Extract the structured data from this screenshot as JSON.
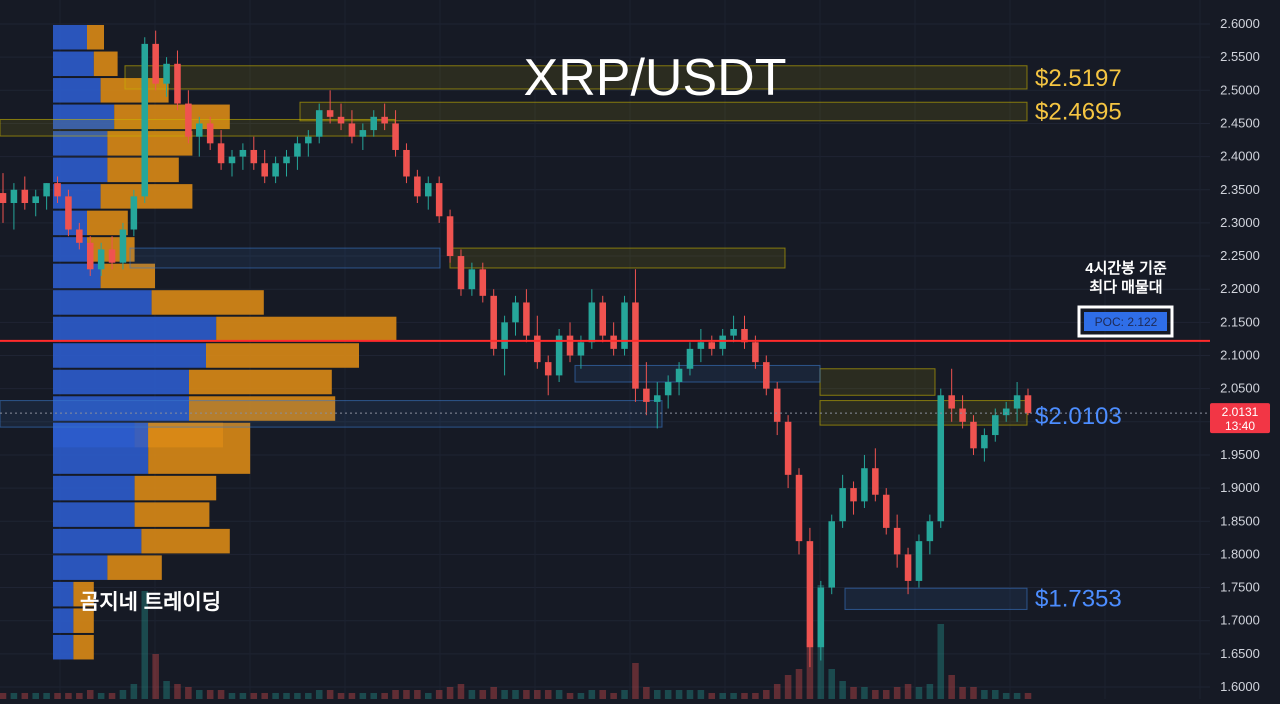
{
  "chart_data": {
    "type": "candlestick",
    "title": "XRP/USDT",
    "y_axis": {
      "position": "right",
      "ylim": [
        1.59,
        2.61
      ],
      "ticks": [
        "2.6000",
        "2.5500",
        "2.5000",
        "2.4500",
        "2.4000",
        "2.3500",
        "2.3000",
        "2.2500",
        "2.2000",
        "2.1500",
        "2.1000",
        "2.0500",
        "2.0000",
        "1.9500",
        "1.9000",
        "1.8500",
        "1.8000",
        "1.7500",
        "1.7000",
        "1.6500",
        "1.6000"
      ]
    },
    "last_price": {
      "value": "2.0131",
      "countdown": "13:40",
      "color": "#f23645"
    },
    "price_levels": [
      {
        "label": "$2.5197",
        "value": 2.5197,
        "color": "#f5c542"
      },
      {
        "label": "$2.4695",
        "value": 2.4695,
        "color": "#f5c542"
      },
      {
        "label": "$2.0103",
        "value": 2.0103,
        "color": "#4c8dff"
      },
      {
        "label": "$1.7353",
        "value": 1.7353,
        "color": "#4c8dff"
      }
    ],
    "poc": {
      "label": "POC: 2.122",
      "value": 2.122,
      "note_line1": "4시간봉 기준",
      "note_line2": "최다 매물대",
      "line_color": "#ff2b2b"
    },
    "zones": [
      {
        "from": 2.502,
        "to": 2.537,
        "color": "#c9b400"
      },
      {
        "from": 2.454,
        "to": 2.482,
        "color": "#c9b400"
      },
      {
        "from": 2.431,
        "to": 2.456,
        "color": "#c9b400"
      },
      {
        "from": 2.232,
        "to": 2.262,
        "color": "#c9b400"
      },
      {
        "from": 2.04,
        "to": 2.08,
        "color": "#c9b400"
      },
      {
        "from": 1.995,
        "to": 2.032,
        "color": "#c9b400"
      },
      {
        "from": 1.717,
        "to": 1.749,
        "color": "#3a78c9"
      },
      {
        "from": 1.992,
        "to": 2.032,
        "color": "#3a78c9"
      },
      {
        "from": 2.06,
        "to": 2.085,
        "color": "#3a78c9"
      },
      {
        "from": 2.232,
        "to": 2.262,
        "color": "#3a78c9"
      }
    ],
    "volume_profile": {
      "rows": [
        {
          "low": 2.56,
          "high": 2.6,
          "buy": 0.1,
          "sell": 0.05
        },
        {
          "low": 2.52,
          "high": 2.56,
          "buy": 0.12,
          "sell": 0.07
        },
        {
          "low": 2.48,
          "high": 2.52,
          "buy": 0.14,
          "sell": 0.2
        },
        {
          "low": 2.44,
          "high": 2.48,
          "buy": 0.18,
          "sell": 0.34
        },
        {
          "low": 2.4,
          "high": 2.44,
          "buy": 0.16,
          "sell": 0.25
        },
        {
          "low": 2.36,
          "high": 2.4,
          "buy": 0.16,
          "sell": 0.21
        },
        {
          "low": 2.32,
          "high": 2.36,
          "buy": 0.14,
          "sell": 0.27
        },
        {
          "low": 2.28,
          "high": 2.32,
          "buy": 0.1,
          "sell": 0.12
        },
        {
          "low": 2.24,
          "high": 2.28,
          "buy": 0.1,
          "sell": 0.14
        },
        {
          "low": 2.2,
          "high": 2.24,
          "buy": 0.14,
          "sell": 0.16
        },
        {
          "low": 2.16,
          "high": 2.2,
          "buy": 0.29,
          "sell": 0.33
        },
        {
          "low": 2.12,
          "high": 2.16,
          "buy": 0.48,
          "sell": 0.53
        },
        {
          "low": 2.08,
          "high": 2.12,
          "buy": 0.45,
          "sell": 0.45
        },
        {
          "low": 2.04,
          "high": 2.08,
          "buy": 0.4,
          "sell": 0.42
        },
        {
          "low": 2.0,
          "high": 2.04,
          "buy": 0.4,
          "sell": 0.43
        },
        {
          "low": 1.96,
          "high": 2.0,
          "buy": 0.24,
          "sell": 0.26
        },
        {
          "low": 1.92,
          "high": 2.0,
          "buy": 0.28,
          "sell": 0.3
        },
        {
          "low": 1.88,
          "high": 1.92,
          "buy": 0.24,
          "sell": 0.24
        },
        {
          "low": 1.84,
          "high": 1.88,
          "buy": 0.24,
          "sell": 0.22
        },
        {
          "low": 1.8,
          "high": 1.84,
          "buy": 0.26,
          "sell": 0.26
        },
        {
          "low": 1.76,
          "high": 1.8,
          "buy": 0.16,
          "sell": 0.16
        },
        {
          "low": 1.72,
          "high": 1.76,
          "buy": 0.06,
          "sell": 0.06
        },
        {
          "low": 1.68,
          "high": 1.72,
          "buy": 0.06,
          "sell": 0.06
        },
        {
          "low": 1.64,
          "high": 1.68,
          "buy": 0.06,
          "sell": 0.06
        }
      ]
    },
    "candles": [
      [
        2.345,
        2.375,
        2.3,
        2.33
      ],
      [
        2.33,
        2.36,
        2.29,
        2.35
      ],
      [
        2.35,
        2.37,
        2.32,
        2.33
      ],
      [
        2.33,
        2.35,
        2.31,
        2.34
      ],
      [
        2.34,
        2.36,
        2.32,
        2.36
      ],
      [
        2.36,
        2.37,
        2.33,
        2.34
      ],
      [
        2.34,
        2.35,
        2.28,
        2.29
      ],
      [
        2.29,
        2.3,
        2.26,
        2.27
      ],
      [
        2.27,
        2.28,
        2.22,
        2.23
      ],
      [
        2.23,
        2.27,
        2.22,
        2.26
      ],
      [
        2.26,
        2.28,
        2.23,
        2.24
      ],
      [
        2.24,
        2.3,
        2.23,
        2.29
      ],
      [
        2.29,
        2.35,
        2.28,
        2.34
      ],
      [
        2.34,
        2.58,
        2.33,
        2.57
      ],
      [
        2.57,
        2.59,
        2.5,
        2.51
      ],
      [
        2.51,
        2.55,
        2.49,
        2.54
      ],
      [
        2.54,
        2.56,
        2.47,
        2.48
      ],
      [
        2.48,
        2.5,
        2.42,
        2.43
      ],
      [
        2.43,
        2.46,
        2.4,
        2.45
      ],
      [
        2.45,
        2.46,
        2.41,
        2.42
      ],
      [
        2.42,
        2.44,
        2.38,
        2.39
      ],
      [
        2.39,
        2.41,
        2.37,
        2.4
      ],
      [
        2.4,
        2.42,
        2.38,
        2.41
      ],
      [
        2.41,
        2.43,
        2.38,
        2.39
      ],
      [
        2.39,
        2.41,
        2.36,
        2.37
      ],
      [
        2.37,
        2.4,
        2.36,
        2.39
      ],
      [
        2.39,
        2.41,
        2.37,
        2.4
      ],
      [
        2.4,
        2.43,
        2.38,
        2.42
      ],
      [
        2.42,
        2.44,
        2.4,
        2.43
      ],
      [
        2.43,
        2.48,
        2.42,
        2.47
      ],
      [
        2.47,
        2.5,
        2.45,
        2.46
      ],
      [
        2.46,
        2.48,
        2.44,
        2.45
      ],
      [
        2.45,
        2.47,
        2.42,
        2.43
      ],
      [
        2.43,
        2.45,
        2.41,
        2.44
      ],
      [
        2.44,
        2.47,
        2.43,
        2.46
      ],
      [
        2.46,
        2.48,
        2.44,
        2.45
      ],
      [
        2.45,
        2.47,
        2.4,
        2.41
      ],
      [
        2.41,
        2.42,
        2.36,
        2.37
      ],
      [
        2.37,
        2.38,
        2.33,
        2.34
      ],
      [
        2.34,
        2.37,
        2.32,
        2.36
      ],
      [
        2.36,
        2.37,
        2.3,
        2.31
      ],
      [
        2.31,
        2.32,
        2.24,
        2.25
      ],
      [
        2.25,
        2.26,
        2.19,
        2.2
      ],
      [
        2.2,
        2.24,
        2.19,
        2.23
      ],
      [
        2.23,
        2.24,
        2.18,
        2.19
      ],
      [
        2.19,
        2.2,
        2.1,
        2.11
      ],
      [
        2.11,
        2.16,
        2.07,
        2.15
      ],
      [
        2.15,
        2.19,
        2.13,
        2.18
      ],
      [
        2.18,
        2.2,
        2.12,
        2.13
      ],
      [
        2.13,
        2.16,
        2.08,
        2.09
      ],
      [
        2.09,
        2.1,
        2.04,
        2.07
      ],
      [
        2.07,
        2.14,
        2.06,
        2.13
      ],
      [
        2.13,
        2.15,
        2.09,
        2.1
      ],
      [
        2.1,
        2.13,
        2.08,
        2.12
      ],
      [
        2.12,
        2.2,
        2.11,
        2.18
      ],
      [
        2.18,
        2.19,
        2.12,
        2.13
      ],
      [
        2.13,
        2.15,
        2.1,
        2.11
      ],
      [
        2.11,
        2.19,
        2.1,
        2.18
      ],
      [
        2.18,
        2.23,
        2.03,
        2.05
      ],
      [
        2.05,
        2.09,
        2.01,
        2.03
      ],
      [
        2.03,
        2.06,
        1.99,
        2.04
      ],
      [
        2.04,
        2.07,
        2.02,
        2.06
      ],
      [
        2.06,
        2.09,
        2.04,
        2.08
      ],
      [
        2.08,
        2.12,
        2.07,
        2.11
      ],
      [
        2.11,
        2.14,
        2.09,
        2.12
      ],
      [
        2.12,
        2.13,
        2.1,
        2.11
      ],
      [
        2.11,
        2.14,
        2.1,
        2.13
      ],
      [
        2.13,
        2.16,
        2.12,
        2.14
      ],
      [
        2.14,
        2.16,
        2.11,
        2.12
      ],
      [
        2.12,
        2.13,
        2.08,
        2.09
      ],
      [
        2.09,
        2.1,
        2.04,
        2.05
      ],
      [
        2.05,
        2.06,
        1.98,
        2.0
      ],
      [
        2.0,
        2.01,
        1.9,
        1.92
      ],
      [
        1.92,
        1.93,
        1.8,
        1.82
      ],
      [
        1.82,
        1.84,
        1.63,
        1.66
      ],
      [
        1.66,
        1.76,
        1.64,
        1.75
      ],
      [
        1.75,
        1.86,
        1.74,
        1.85
      ],
      [
        1.85,
        1.92,
        1.84,
        1.9
      ],
      [
        1.9,
        1.91,
        1.86,
        1.88
      ],
      [
        1.88,
        1.95,
        1.87,
        1.93
      ],
      [
        1.93,
        1.96,
        1.88,
        1.89
      ],
      [
        1.89,
        1.9,
        1.83,
        1.84
      ],
      [
        1.84,
        1.86,
        1.78,
        1.8
      ],
      [
        1.8,
        1.81,
        1.74,
        1.76
      ],
      [
        1.76,
        1.83,
        1.75,
        1.82
      ],
      [
        1.82,
        1.86,
        1.8,
        1.85
      ],
      [
        1.85,
        2.05,
        1.84,
        2.04
      ],
      [
        2.04,
        2.08,
        2.0,
        2.02
      ],
      [
        2.02,
        2.04,
        1.99,
        2.0
      ],
      [
        2.0,
        2.01,
        1.95,
        1.96
      ],
      [
        1.96,
        1.99,
        1.94,
        1.98
      ],
      [
        1.98,
        2.02,
        1.97,
        2.01
      ],
      [
        2.01,
        2.03,
        2.0,
        2.02
      ],
      [
        2.02,
        2.06,
        2.0,
        2.04
      ],
      [
        2.04,
        2.05,
        2.01,
        2.0131
      ]
    ],
    "volumes": [
      0.02,
      0.02,
      0.02,
      0.02,
      0.02,
      0.02,
      0.02,
      0.02,
      0.03,
      0.02,
      0.02,
      0.03,
      0.05,
      0.36,
      0.15,
      0.06,
      0.05,
      0.04,
      0.03,
      0.03,
      0.03,
      0.02,
      0.02,
      0.02,
      0.02,
      0.02,
      0.02,
      0.02,
      0.02,
      0.03,
      0.03,
      0.02,
      0.02,
      0.02,
      0.02,
      0.02,
      0.03,
      0.03,
      0.03,
      0.02,
      0.03,
      0.04,
      0.05,
      0.03,
      0.03,
      0.04,
      0.03,
      0.03,
      0.03,
      0.03,
      0.03,
      0.03,
      0.02,
      0.02,
      0.03,
      0.03,
      0.02,
      0.03,
      0.12,
      0.04,
      0.03,
      0.03,
      0.03,
      0.03,
      0.03,
      0.02,
      0.02,
      0.02,
      0.02,
      0.02,
      0.03,
      0.05,
      0.08,
      0.1,
      0.2,
      0.38,
      0.1,
      0.06,
      0.04,
      0.04,
      0.03,
      0.03,
      0.04,
      0.05,
      0.04,
      0.05,
      0.25,
      0.08,
      0.04,
      0.04,
      0.03,
      0.03,
      0.02,
      0.02,
      0.02
    ]
  },
  "brand_label": "곰지네 트레이딩"
}
